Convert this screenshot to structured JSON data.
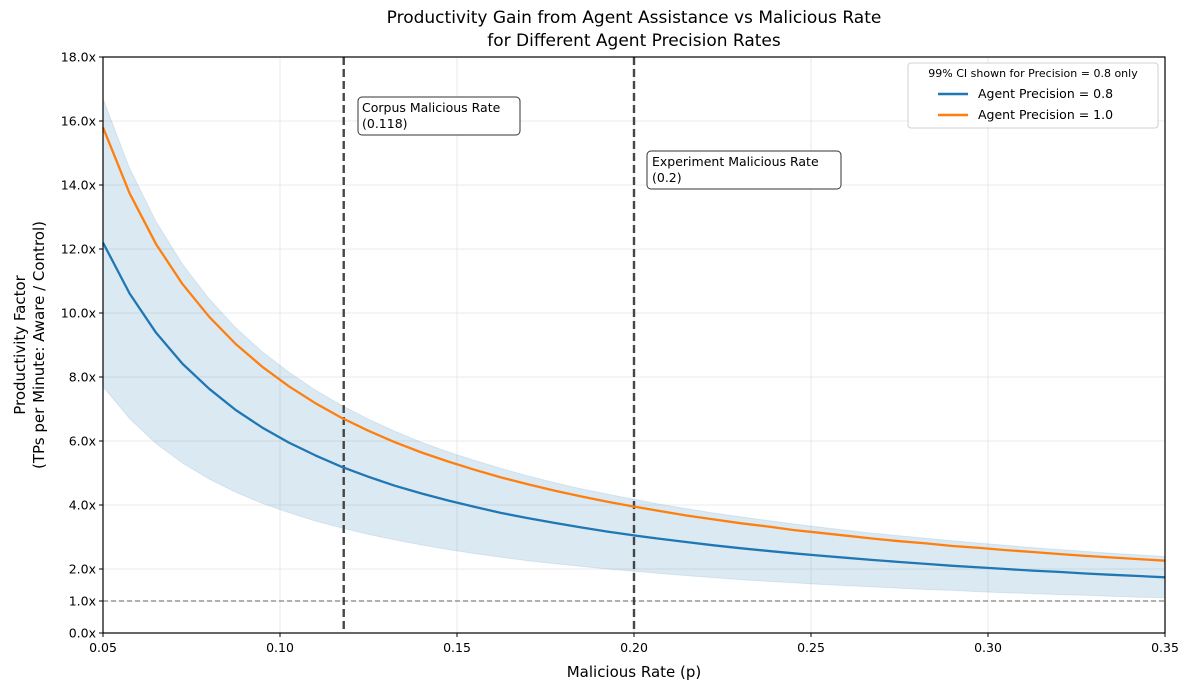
{
  "chart_data": {
    "type": "line",
    "title": "Productivity Gain from Agent Assistance vs Malicious Rate",
    "subtitle": "for Different Agent Precision Rates",
    "xlabel": "Malicious Rate (p)",
    "ylabel": "Productivity Factor",
    "ylabel2": "(TPs per Minute: Aware / Control)",
    "xlim": [
      0.05,
      0.35
    ],
    "ylim": [
      0.0,
      18.0
    ],
    "grid": true,
    "xticks": [
      0.05,
      0.1,
      0.15,
      0.2,
      0.25,
      0.3,
      0.35
    ],
    "xtick_labels": [
      "0.05",
      "0.10",
      "0.15",
      "0.20",
      "0.25",
      "0.30",
      "0.35"
    ],
    "yticks": [
      0,
      1,
      2,
      4,
      6,
      8,
      10,
      12,
      14,
      16,
      18
    ],
    "ytick_labels": [
      "0.0x",
      "1.0x",
      "2.0x",
      "4.0x",
      "6.0x",
      "8.0x",
      "10.0x",
      "12.0x",
      "14.0x",
      "16.0x",
      "18.0x"
    ],
    "x": [
      0.05,
      0.0575,
      0.065,
      0.0725,
      0.08,
      0.0875,
      0.095,
      0.1025,
      0.11,
      0.1175,
      0.125,
      0.1325,
      0.14,
      0.1475,
      0.155,
      0.1625,
      0.17,
      0.1775,
      0.185,
      0.1925,
      0.2,
      0.2075,
      0.215,
      0.2225,
      0.23,
      0.2375,
      0.245,
      0.2525,
      0.26,
      0.2675,
      0.275,
      0.2825,
      0.29,
      0.2975,
      0.305,
      0.3125,
      0.32,
      0.3275,
      0.335,
      0.3425,
      0.35
    ],
    "series": [
      {
        "name": "Agent Precision = 0.8",
        "color": "#1f77b4",
        "values": [
          12.2,
          10.61,
          9.38,
          8.41,
          7.63,
          6.97,
          6.42,
          5.95,
          5.55,
          5.19,
          4.88,
          4.6,
          4.36,
          4.14,
          3.94,
          3.75,
          3.59,
          3.44,
          3.3,
          3.17,
          3.05,
          2.94,
          2.84,
          2.74,
          2.65,
          2.57,
          2.49,
          2.42,
          2.35,
          2.28,
          2.22,
          2.16,
          2.1,
          2.05,
          2.0,
          1.95,
          1.91,
          1.86,
          1.82,
          1.78,
          1.74
        ],
        "ci_label": "99% CI",
        "ci_upper": [
          16.7,
          14.52,
          12.85,
          11.52,
          10.44,
          9.54,
          8.79,
          8.15,
          7.59,
          7.11,
          6.68,
          6.3,
          5.96,
          5.66,
          5.39,
          5.14,
          4.91,
          4.7,
          4.51,
          4.34,
          4.18,
          4.02,
          3.88,
          3.75,
          3.63,
          3.52,
          3.41,
          3.31,
          3.21,
          3.12,
          3.04,
          2.96,
          2.88,
          2.81,
          2.74,
          2.67,
          2.61,
          2.55,
          2.49,
          2.44,
          2.39
        ],
        "ci_lower": [
          7.7,
          6.7,
          5.92,
          5.31,
          4.81,
          4.4,
          4.05,
          3.76,
          3.5,
          3.28,
          3.08,
          2.91,
          2.75,
          2.61,
          2.48,
          2.37,
          2.26,
          2.17,
          2.08,
          2.0,
          1.93,
          1.86,
          1.79,
          1.73,
          1.67,
          1.62,
          1.57,
          1.52,
          1.48,
          1.44,
          1.4,
          1.36,
          1.33,
          1.29,
          1.26,
          1.23,
          1.2,
          1.18,
          1.15,
          1.12,
          1.1
        ],
        "ci_color": "#1f77b4"
      },
      {
        "name": "Agent Precision = 1.0",
        "color": "#ff7f0e",
        "values": [
          15.8,
          13.74,
          12.15,
          10.9,
          9.88,
          9.03,
          8.32,
          7.71,
          7.18,
          6.72,
          6.32,
          5.96,
          5.64,
          5.36,
          5.1,
          4.86,
          4.65,
          4.45,
          4.27,
          4.1,
          3.95,
          3.81,
          3.67,
          3.55,
          3.43,
          3.33,
          3.22,
          3.13,
          3.04,
          2.95,
          2.87,
          2.8,
          2.72,
          2.66,
          2.59,
          2.53,
          2.47,
          2.41,
          2.36,
          2.31,
          2.26
        ]
      }
    ],
    "reference_lines": {
      "horizontal": {
        "y": 1.0,
        "color": "#666666"
      },
      "vertical": [
        {
          "x": 0.118,
          "label": "Corpus Malicious Rate",
          "value_label": "(0.118)",
          "color": "#333333"
        },
        {
          "x": 0.2,
          "label": "Experiment Malicious Rate",
          "value_label": "(0.2)",
          "color": "#333333"
        }
      ]
    },
    "legend": {
      "title": "99% CI shown for Precision = 0.8 only",
      "placement": "top-right",
      "entries": [
        "Agent Precision = 0.8",
        "Agent Precision = 1.0"
      ]
    }
  }
}
